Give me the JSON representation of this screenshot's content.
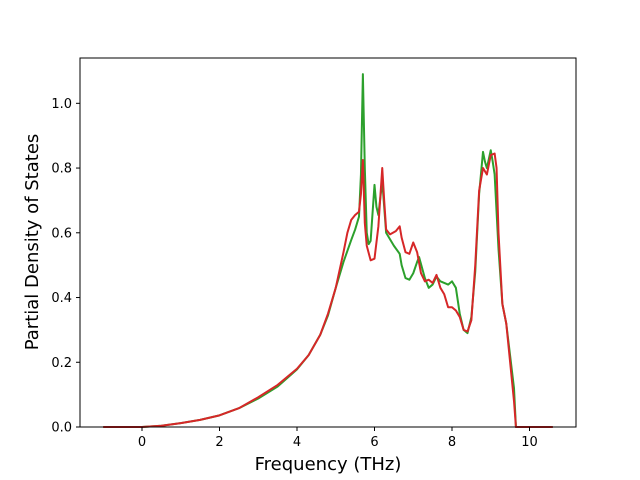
{
  "chart_data": {
    "type": "line",
    "title": "",
    "xlabel": "Frequency (THz)",
    "ylabel": "Partial Density of States",
    "xlim": [
      -1.6,
      11.2
    ],
    "ylim": [
      0.0,
      1.14
    ],
    "xticks": [
      0,
      2,
      4,
      6,
      8,
      10
    ],
    "yticks": [
      0.0,
      0.2,
      0.4,
      0.6,
      0.8,
      1.0
    ],
    "xtick_labels": [
      "0",
      "2",
      "4",
      "6",
      "8",
      "10"
    ],
    "ytick_labels": [
      "0.0",
      "0.2",
      "0.4",
      "0.6",
      "0.8",
      "1.0"
    ],
    "grid": false,
    "legend": "none",
    "series": [
      {
        "color": "#2ca02c",
        "points": [
          [
            -1.0,
            0.0
          ],
          [
            0.0,
            0.0
          ],
          [
            0.5,
            0.004
          ],
          [
            1.0,
            0.012
          ],
          [
            1.5,
            0.022
          ],
          [
            2.0,
            0.036
          ],
          [
            2.5,
            0.058
          ],
          [
            3.0,
            0.088
          ],
          [
            3.5,
            0.125
          ],
          [
            4.0,
            0.178
          ],
          [
            4.3,
            0.222
          ],
          [
            4.6,
            0.285
          ],
          [
            4.8,
            0.345
          ],
          [
            5.0,
            0.43
          ],
          [
            5.2,
            0.51
          ],
          [
            5.4,
            0.578
          ],
          [
            5.5,
            0.61
          ],
          [
            5.6,
            0.65
          ],
          [
            5.65,
            0.78
          ],
          [
            5.7,
            1.09
          ],
          [
            5.75,
            0.8
          ],
          [
            5.8,
            0.6
          ],
          [
            5.85,
            0.565
          ],
          [
            5.9,
            0.575
          ],
          [
            6.0,
            0.748
          ],
          [
            6.05,
            0.68
          ],
          [
            6.1,
            0.655
          ],
          [
            6.2,
            0.76
          ],
          [
            6.3,
            0.6
          ],
          [
            6.5,
            0.56
          ],
          [
            6.65,
            0.535
          ],
          [
            6.7,
            0.5
          ],
          [
            6.8,
            0.46
          ],
          [
            6.9,
            0.455
          ],
          [
            7.0,
            0.475
          ],
          [
            7.1,
            0.51
          ],
          [
            7.15,
            0.525
          ],
          [
            7.3,
            0.46
          ],
          [
            7.4,
            0.43
          ],
          [
            7.5,
            0.44
          ],
          [
            7.6,
            0.465
          ],
          [
            7.7,
            0.45
          ],
          [
            7.9,
            0.44
          ],
          [
            8.0,
            0.45
          ],
          [
            8.1,
            0.43
          ],
          [
            8.2,
            0.35
          ],
          [
            8.3,
            0.3
          ],
          [
            8.4,
            0.29
          ],
          [
            8.5,
            0.34
          ],
          [
            8.6,
            0.48
          ],
          [
            8.7,
            0.72
          ],
          [
            8.8,
            0.85
          ],
          [
            8.85,
            0.82
          ],
          [
            8.9,
            0.8
          ],
          [
            9.0,
            0.855
          ],
          [
            9.05,
            0.82
          ],
          [
            9.1,
            0.78
          ],
          [
            9.2,
            0.55
          ],
          [
            9.3,
            0.38
          ],
          [
            9.4,
            0.32
          ],
          [
            9.5,
            0.22
          ],
          [
            9.6,
            0.12
          ],
          [
            9.65,
            0.0
          ],
          [
            10.6,
            0.0
          ]
        ]
      },
      {
        "color": "#d62728",
        "points": [
          [
            -1.0,
            0.0
          ],
          [
            0.0,
            0.0
          ],
          [
            0.5,
            0.004
          ],
          [
            1.0,
            0.012
          ],
          [
            1.5,
            0.022
          ],
          [
            2.0,
            0.036
          ],
          [
            2.5,
            0.058
          ],
          [
            3.0,
            0.092
          ],
          [
            3.5,
            0.13
          ],
          [
            4.0,
            0.18
          ],
          [
            4.3,
            0.222
          ],
          [
            4.6,
            0.285
          ],
          [
            4.8,
            0.35
          ],
          [
            5.0,
            0.43
          ],
          [
            5.2,
            0.54
          ],
          [
            5.3,
            0.6
          ],
          [
            5.4,
            0.64
          ],
          [
            5.5,
            0.655
          ],
          [
            5.6,
            0.665
          ],
          [
            5.65,
            0.72
          ],
          [
            5.7,
            0.825
          ],
          [
            5.75,
            0.63
          ],
          [
            5.8,
            0.56
          ],
          [
            5.9,
            0.515
          ],
          [
            6.0,
            0.52
          ],
          [
            6.1,
            0.62
          ],
          [
            6.2,
            0.8
          ],
          [
            6.25,
            0.7
          ],
          [
            6.3,
            0.61
          ],
          [
            6.4,
            0.595
          ],
          [
            6.55,
            0.605
          ],
          [
            6.65,
            0.62
          ],
          [
            6.7,
            0.585
          ],
          [
            6.8,
            0.54
          ],
          [
            6.9,
            0.535
          ],
          [
            7.0,
            0.57
          ],
          [
            7.1,
            0.54
          ],
          [
            7.2,
            0.475
          ],
          [
            7.3,
            0.45
          ],
          [
            7.4,
            0.455
          ],
          [
            7.5,
            0.445
          ],
          [
            7.6,
            0.47
          ],
          [
            7.7,
            0.43
          ],
          [
            7.8,
            0.41
          ],
          [
            7.9,
            0.37
          ],
          [
            8.0,
            0.37
          ],
          [
            8.1,
            0.36
          ],
          [
            8.2,
            0.34
          ],
          [
            8.3,
            0.3
          ],
          [
            8.4,
            0.295
          ],
          [
            8.5,
            0.33
          ],
          [
            8.6,
            0.5
          ],
          [
            8.7,
            0.73
          ],
          [
            8.8,
            0.8
          ],
          [
            8.9,
            0.78
          ],
          [
            9.0,
            0.84
          ],
          [
            9.1,
            0.845
          ],
          [
            9.15,
            0.8
          ],
          [
            9.2,
            0.6
          ],
          [
            9.3,
            0.38
          ],
          [
            9.4,
            0.32
          ],
          [
            9.5,
            0.2
          ],
          [
            9.6,
            0.08
          ],
          [
            9.65,
            0.0
          ],
          [
            10.6,
            0.0
          ]
        ]
      }
    ]
  }
}
